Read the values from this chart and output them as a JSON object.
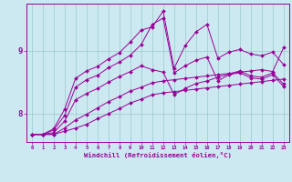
{
  "xlabel": "Windchill (Refroidissement éolien,°C)",
  "background_color": "#cce8f0",
  "line_color": "#990099",
  "grid_color": "#99cccc",
  "x_ticks": [
    0,
    1,
    2,
    3,
    4,
    5,
    6,
    7,
    8,
    9,
    10,
    11,
    12,
    13,
    14,
    15,
    16,
    17,
    18,
    19,
    20,
    21,
    22,
    23
  ],
  "ylim": [
    7.55,
    9.75
  ],
  "xlim": [
    -0.5,
    23.5
  ],
  "series": [
    [
      7.67,
      7.67,
      7.67,
      7.72,
      7.77,
      7.83,
      7.92,
      8.0,
      8.08,
      8.17,
      8.23,
      8.3,
      8.33,
      8.35,
      8.37,
      8.39,
      8.41,
      8.43,
      8.45,
      8.47,
      8.49,
      8.51,
      8.53,
      8.55
    ],
    [
      7.67,
      7.67,
      7.67,
      7.77,
      7.9,
      7.99,
      8.09,
      8.19,
      8.27,
      8.36,
      8.42,
      8.49,
      8.52,
      8.54,
      8.56,
      8.58,
      8.6,
      8.62,
      8.64,
      8.66,
      8.68,
      8.7,
      8.67,
      9.05
    ],
    [
      7.67,
      7.67,
      7.7,
      7.88,
      8.22,
      8.32,
      8.4,
      8.5,
      8.59,
      8.67,
      8.76,
      8.7,
      8.66,
      8.3,
      8.4,
      8.48,
      8.52,
      8.58,
      8.63,
      8.68,
      8.6,
      8.58,
      8.65,
      8.47
    ],
    [
      7.67,
      7.67,
      7.74,
      7.97,
      8.42,
      8.54,
      8.61,
      8.73,
      8.82,
      8.93,
      9.1,
      9.42,
      9.52,
      8.65,
      8.76,
      8.85,
      8.9,
      8.52,
      8.62,
      8.65,
      8.57,
      8.55,
      8.62,
      8.43
    ],
    [
      7.67,
      7.67,
      7.76,
      8.07,
      8.56,
      8.68,
      8.75,
      8.87,
      8.97,
      9.14,
      9.33,
      9.38,
      9.63,
      8.72,
      9.08,
      9.3,
      9.42,
      8.88,
      8.98,
      9.02,
      8.95,
      8.92,
      8.98,
      8.78
    ]
  ]
}
